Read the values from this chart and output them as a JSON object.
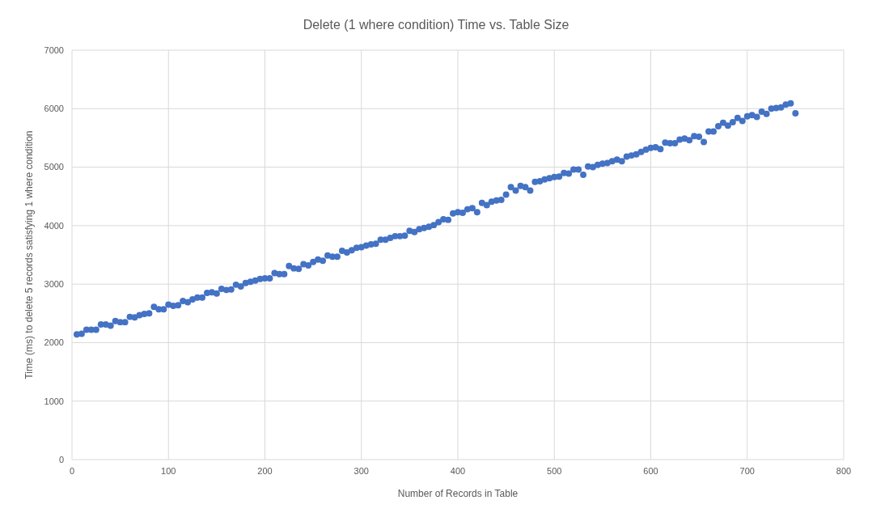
{
  "chart_data": {
    "type": "scatter",
    "title": "Delete (1 where condition) Time vs. Table Size",
    "xlabel": "Number of Records in Table",
    "ylabel": "Time (ms) to delete 5 records satisfying 1 where condition",
    "x": [
      5,
      10,
      15,
      20,
      25,
      30,
      35,
      40,
      45,
      50,
      55,
      60,
      65,
      70,
      75,
      80,
      85,
      90,
      95,
      100,
      105,
      110,
      115,
      120,
      125,
      130,
      135,
      140,
      145,
      150,
      155,
      160,
      165,
      170,
      175,
      180,
      185,
      190,
      195,
      200,
      205,
      210,
      215,
      220,
      225,
      230,
      235,
      240,
      245,
      250,
      255,
      260,
      265,
      270,
      275,
      280,
      285,
      290,
      295,
      300,
      305,
      310,
      315,
      320,
      325,
      330,
      335,
      340,
      345,
      350,
      355,
      360,
      365,
      370,
      375,
      380,
      385,
      390,
      395,
      400,
      405,
      410,
      415,
      420,
      425,
      430,
      435,
      440,
      445,
      450,
      455,
      460,
      465,
      470,
      475,
      480,
      485,
      490,
      495,
      500,
      505,
      510,
      515,
      520,
      525,
      530,
      535,
      540,
      545,
      550,
      555,
      560,
      565,
      570,
      575,
      580,
      585,
      590,
      595,
      600,
      605,
      610,
      615,
      620,
      625,
      630,
      635,
      640,
      645,
      650,
      655,
      660,
      665,
      670,
      675,
      680,
      685,
      690,
      695,
      700,
      705,
      710,
      715,
      720,
      725,
      730,
      735,
      740,
      745,
      750
    ],
    "series": [
      {
        "color": "#4472c4",
        "values": [
          2140,
          2150,
          2220,
          2220,
          2220,
          2310,
          2310,
          2290,
          2370,
          2350,
          2350,
          2440,
          2430,
          2470,
          2490,
          2500,
          2610,
          2570,
          2570,
          2650,
          2630,
          2640,
          2710,
          2690,
          2740,
          2770,
          2770,
          2850,
          2860,
          2840,
          2920,
          2900,
          2910,
          2990,
          2960,
          3020,
          3040,
          3060,
          3090,
          3100,
          3100,
          3190,
          3170,
          3170,
          3310,
          3270,
          3260,
          3340,
          3320,
          3380,
          3420,
          3400,
          3490,
          3470,
          3470,
          3570,
          3540,
          3580,
          3620,
          3630,
          3660,
          3680,
          3690,
          3760,
          3760,
          3790,
          3820,
          3820,
          3830,
          3910,
          3890,
          3940,
          3960,
          3980,
          4010,
          4060,
          4110,
          4100,
          4210,
          4230,
          4220,
          4280,
          4300,
          4230,
          4390,
          4350,
          4410,
          4430,
          4440,
          4530,
          4660,
          4600,
          4680,
          4660,
          4600,
          4750,
          4760,
          4790,
          4810,
          4830,
          4840,
          4900,
          4890,
          4960,
          4960,
          4870,
          5010,
          5000,
          5040,
          5060,
          5070,
          5100,
          5130,
          5100,
          5180,
          5200,
          5220,
          5260,
          5300,
          5330,
          5340,
          5310,
          5420,
          5410,
          5410,
          5470,
          5490,
          5460,
          5530,
          5520,
          5430,
          5610,
          5610,
          5700,
          5760,
          5710,
          5770,
          5840,
          5790,
          5870,
          5890,
          5860,
          5950,
          5910,
          6000,
          6010,
          6020,
          6070,
          6090,
          5920
        ]
      }
    ],
    "xlim": [
      0,
      800
    ],
    "xticks": [
      0,
      100,
      200,
      300,
      400,
      500,
      600,
      700,
      800
    ],
    "ylim": [
      0,
      7000
    ],
    "yticks": [
      0,
      1000,
      2000,
      3000,
      4000,
      5000,
      6000,
      7000
    ],
    "grid": true,
    "marker": "circle"
  }
}
